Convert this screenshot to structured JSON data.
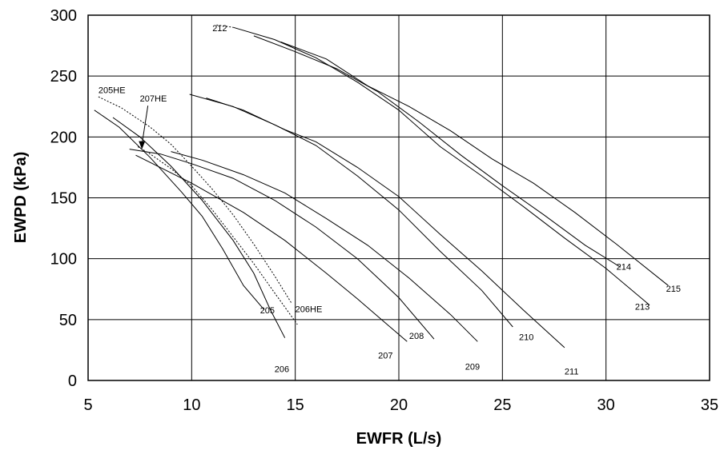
{
  "chart_data": {
    "type": "line",
    "title": "",
    "xlabel": "EWFR (L/s)",
    "ylabel": "EWPD (kPa)",
    "xlim": [
      5,
      35
    ],
    "ylim": [
      0,
      300
    ],
    "xticks": [
      "5",
      "10",
      "15",
      "20",
      "25",
      "30",
      "35"
    ],
    "yticks": [
      "0",
      "50",
      "100",
      "150",
      "200",
      "250",
      "300"
    ],
    "grid": true,
    "legend": "none",
    "series": [
      {
        "name": "205",
        "x": [
          5.3,
          6.5,
          8.0,
          9.5,
          10.5,
          11.5,
          12.5,
          13.5
        ],
        "y": [
          222,
          208,
          183,
          155,
          135,
          108,
          78,
          58
        ]
      },
      {
        "name": "205HE",
        "x": [
          5.5,
          6.6,
          8.0,
          9.0,
          10.0,
          11.0,
          12.0,
          13.0,
          14.0,
          14.8
        ],
        "y": [
          233,
          224,
          208,
          194,
          176,
          157,
          136,
          112,
          86,
          64
        ],
        "style": "dashed"
      },
      {
        "name": "206",
        "x": [
          6.2,
          7.5,
          9.0,
          10.5,
          12.0,
          13.0,
          13.8,
          14.5
        ],
        "y": [
          216,
          200,
          176,
          148,
          115,
          88,
          58,
          35
        ]
      },
      {
        "name": "206HE",
        "x": [
          7.4,
          8.0,
          9.0,
          10.0,
          11.0,
          12.0,
          13.0,
          14.0,
          15.1
        ],
        "y": [
          192,
          186,
          174,
          160,
          140,
          118,
          96,
          72,
          46
        ],
        "style": "dashed"
      },
      {
        "name": "207",
        "x": [
          7.3,
          10.0,
          12.5,
          14.5,
          16.5,
          18.0,
          19.5,
          20.4
        ],
        "y": [
          185,
          162,
          138,
          115,
          88,
          67,
          45,
          32
        ]
      },
      {
        "name": "208",
        "x": [
          7.0,
          8.5,
          10.0,
          12.0,
          14.0,
          16.0,
          18.0,
          20.0,
          21.7
        ],
        "y": [
          190,
          186,
          178,
          166,
          148,
          126,
          100,
          68,
          34
        ]
      },
      {
        "name": "209",
        "x": [
          9.0,
          10.5,
          12.5,
          14.5,
          16.5,
          18.5,
          20.5,
          22.5,
          23.8
        ],
        "y": [
          188,
          181,
          169,
          154,
          133,
          111,
          84,
          54,
          32
        ]
      },
      {
        "name": "210",
        "x": [
          9.9,
          12.0,
          14.0,
          16.0,
          18.0,
          20.0,
          22.0,
          24.0,
          25.5
        ],
        "y": [
          235,
          225,
          210,
          193,
          168,
          140,
          106,
          74,
          44
        ]
      },
      {
        "name": "211",
        "x": [
          10.7,
          12.5,
          14.5,
          16.0,
          18.0,
          20.0,
          22.0,
          24.0,
          26.0,
          28.0
        ],
        "y": [
          232,
          222,
          206,
          196,
          175,
          151,
          120,
          90,
          58,
          27
        ]
      },
      {
        "name": "212",
        "x": [
          11.2,
          12.0
        ],
        "y": [
          292,
          290
        ],
        "style": "dashed"
      },
      {
        "name": "213",
        "x": [
          12.0,
          14.0,
          16.0,
          18.0,
          20.0,
          22.0,
          24.0,
          26.0,
          28.0,
          30.0,
          32.1
        ],
        "y": [
          290,
          280,
          265,
          245,
          222,
          192,
          168,
          143,
          117,
          92,
          62
        ]
      },
      {
        "name": "214",
        "x": [
          13.0,
          15.0,
          17.0,
          19.0,
          21.0,
          23.0,
          25.0,
          27.0,
          29.0,
          30.7
        ],
        "y": [
          283,
          270,
          256,
          237,
          212,
          185,
          160,
          136,
          111,
          93
        ]
      },
      {
        "name": "215",
        "x": [
          14.3,
          16.5,
          18.5,
          20.5,
          22.5,
          24.5,
          26.5,
          28.5,
          30.5,
          33.0
        ],
        "y": [
          278,
          264,
          242,
          225,
          205,
          182,
          162,
          138,
          112,
          78
        ]
      }
    ],
    "annotations": [
      {
        "text": "205HE",
        "x": 5.5,
        "y": 236
      },
      {
        "text": "207HE",
        "x": 7.5,
        "y": 229,
        "arrow_to": [
          7.6,
          190
        ]
      },
      {
        "text": "212",
        "x": 11.0,
        "y": 287
      },
      {
        "text": "205",
        "x": 13.3,
        "y": 55
      },
      {
        "text": "206",
        "x": 14.0,
        "y": 7
      },
      {
        "text": "206HE",
        "x": 15.0,
        "y": 56
      },
      {
        "text": "207",
        "x": 19.0,
        "y": 18
      },
      {
        "text": "208",
        "x": 20.5,
        "y": 34
      },
      {
        "text": "209",
        "x": 23.2,
        "y": 9
      },
      {
        "text": "210",
        "x": 25.8,
        "y": 33
      },
      {
        "text": "211",
        "x": 28.0,
        "y": 5
      },
      {
        "text": "213",
        "x": 31.4,
        "y": 58
      },
      {
        "text": "214",
        "x": 30.5,
        "y": 91
      },
      {
        "text": "215",
        "x": 32.9,
        "y": 73
      }
    ]
  }
}
